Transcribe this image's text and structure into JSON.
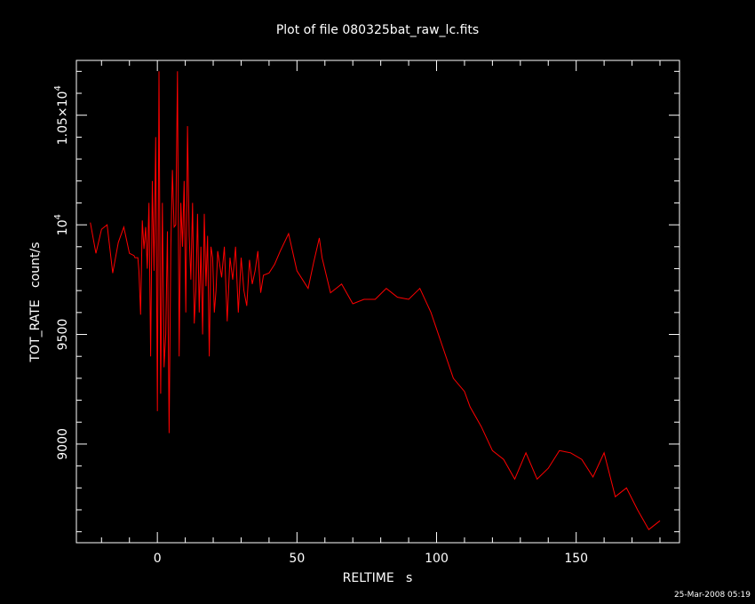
{
  "chart_data": {
    "type": "line",
    "title": "Plot of file 080325bat_raw_lc.fits",
    "xlabel": "RELTIME   s",
    "ylabel": "TOT_RATE   count/s",
    "footer_timestamp": "25-Mar-2008 05:19",
    "xlim": [
      -29,
      187
    ],
    "ylim": [
      8550,
      10750
    ],
    "x_ticks": [
      0,
      50,
      100,
      150
    ],
    "x_tick_labels": [
      "0",
      "50",
      "100",
      "150"
    ],
    "y_ticks": [
      9000,
      9500,
      10000,
      10500
    ],
    "y_tick_base": [
      "9000",
      "9500",
      "10",
      "1.05×10"
    ],
    "y_tick_exp": [
      "",
      "",
      "4",
      "4"
    ],
    "grid": false,
    "colors": {
      "background": "#000000",
      "axes": "#ffffff",
      "series": "#ff0000"
    },
    "series": [
      {
        "x": [
          -24.0,
          -22.0,
          -20.0,
          -18.0,
          -16.0,
          -14.0,
          -12.0,
          -10.0,
          -8.4,
          -8.0,
          -7.0,
          -6.6,
          -6.0,
          -5.4,
          -4.8,
          -4.2,
          -3.6,
          -3.0,
          -2.4,
          -1.8,
          -1.2,
          -0.6,
          0.0,
          0.6,
          1.2,
          1.8,
          2.4,
          3.0,
          3.6,
          4.2,
          4.8,
          5.4,
          6.0,
          6.6,
          7.2,
          7.8,
          8.4,
          9.0,
          9.6,
          10.2,
          10.8,
          11.4,
          12.0,
          12.6,
          13.2,
          13.8,
          14.4,
          15.0,
          15.6,
          16.2,
          16.8,
          17.4,
          18.0,
          18.6,
          19.2,
          19.8,
          20.4,
          21.0,
          21.6,
          23.0,
          24.0,
          25.0,
          26.0,
          27.0,
          28.0,
          29.0,
          30.0,
          31.0,
          32.0,
          33.0,
          34.0,
          35.0,
          36.0,
          37.0,
          38.0,
          40.0,
          42.0,
          44.0,
          47.0,
          50.0,
          54.0,
          56.0,
          58.0,
          59.0,
          62.0,
          66.0,
          70.0,
          74.0,
          78.0,
          82.0,
          86.0,
          90.0,
          94.0,
          98.0,
          102.0,
          106.0,
          110.0,
          112.0,
          116.0,
          120.0,
          124.0,
          128.0,
          132.0,
          136.0,
          140.0,
          144.0,
          148.0,
          152.0,
          156.0,
          160.0,
          164.0,
          168.0,
          172.0,
          176.0,
          180.0
        ],
        "y": [
          10010,
          9870,
          9980,
          10000,
          9780,
          9920,
          9990,
          9870,
          9860,
          9850,
          9850,
          9790,
          9590,
          10020,
          9890,
          9990,
          9800,
          10100,
          9400,
          10200,
          9790,
          10400,
          9150,
          10700,
          9230,
          10100,
          9350,
          9500,
          9970,
          9050,
          9890,
          10250,
          9990,
          10000,
          10700,
          9400,
          10100,
          9900,
          10200,
          9600,
          10450,
          9950,
          9750,
          10100,
          9550,
          9700,
          10050,
          9600,
          9900,
          9500,
          10050,
          9720,
          9950,
          9400,
          9900,
          9850,
          9600,
          9700,
          9880,
          9760,
          9900,
          9560,
          9850,
          9750,
          9900,
          9600,
          9850,
          9700,
          9630,
          9840,
          9730,
          9790,
          9880,
          9690,
          9770,
          9780,
          9820,
          9880,
          9960,
          9790,
          9710,
          9830,
          9940,
          9850,
          9690,
          9730,
          9640,
          9660,
          9660,
          9710,
          9670,
          9660,
          9710,
          9600,
          9450,
          9300,
          9240,
          9170,
          9080,
          8970,
          8930,
          8840,
          8960,
          8840,
          8890,
          8970,
          8960,
          8930,
          8850,
          8960,
          8760,
          8800,
          8700,
          8610,
          8650
        ]
      }
    ]
  }
}
